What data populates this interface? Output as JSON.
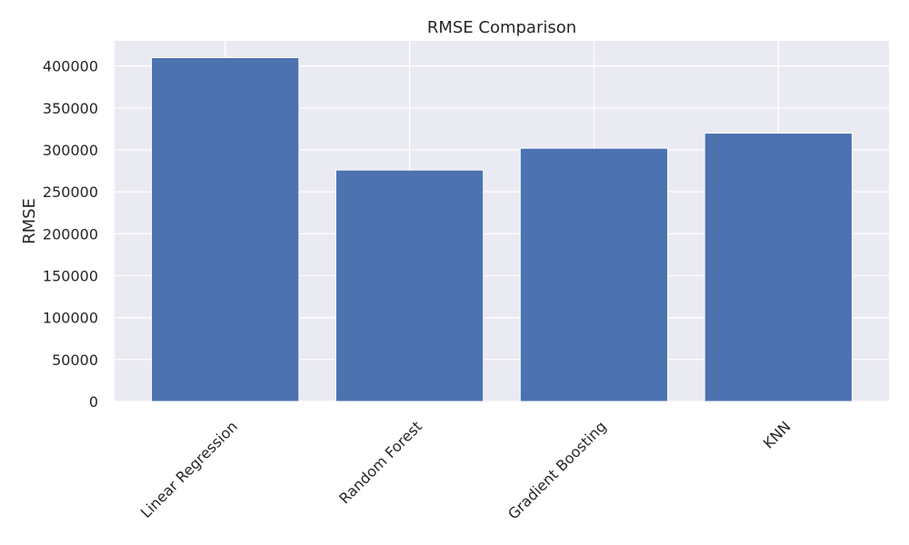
{
  "chart_data": {
    "type": "bar",
    "title": "RMSE Comparison",
    "xlabel": "",
    "ylabel": "RMSE",
    "categories": [
      "Linear Regression",
      "Random Forest",
      "Gradient Boosting",
      "KNN"
    ],
    "values": [
      410000,
      276000,
      302000,
      320000
    ],
    "ylim": [
      0,
      430000
    ],
    "yticks": [
      0,
      50000,
      100000,
      150000,
      200000,
      250000,
      300000,
      350000,
      400000
    ],
    "ytick_labels": [
      "0",
      "50000",
      "100000",
      "150000",
      "200000",
      "250000",
      "300000",
      "350000",
      "400000"
    ],
    "grid": true,
    "colors": {
      "bar": "#4c72b0",
      "plot_background": "#eaeaf2",
      "grid": "#ffffff",
      "text": "#262626"
    }
  }
}
